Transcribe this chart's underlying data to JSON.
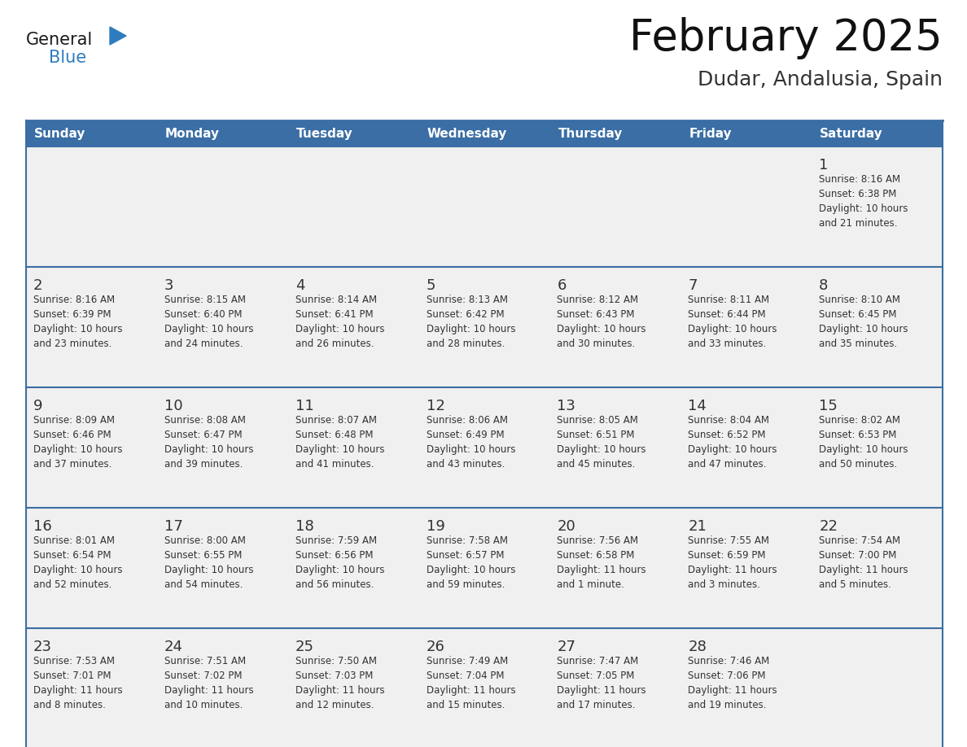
{
  "title": "February 2025",
  "subtitle": "Dudar, Andalusia, Spain",
  "days_of_week": [
    "Sunday",
    "Monday",
    "Tuesday",
    "Wednesday",
    "Thursday",
    "Friday",
    "Saturday"
  ],
  "header_bg": "#3a6ea5",
  "header_text": "#ffffff",
  "row_bg": "#f0f0f0",
  "cell_border_color": "#3a6ea5",
  "day_number_color": "#333333",
  "text_color": "#333333",
  "logo_general_color": "#1a1a1a",
  "logo_blue_color": "#2e7cbf",
  "logo_triangle_color": "#2e7cbf",
  "calendar_data": [
    [
      null,
      null,
      null,
      null,
      null,
      null,
      {
        "day": "1",
        "sunrise": "8:16 AM",
        "sunset": "6:38 PM",
        "daylight": "10 hours and 21 minutes."
      }
    ],
    [
      {
        "day": "2",
        "sunrise": "8:16 AM",
        "sunset": "6:39 PM",
        "daylight": "10 hours and 23 minutes."
      },
      {
        "day": "3",
        "sunrise": "8:15 AM",
        "sunset": "6:40 PM",
        "daylight": "10 hours and 24 minutes."
      },
      {
        "day": "4",
        "sunrise": "8:14 AM",
        "sunset": "6:41 PM",
        "daylight": "10 hours and 26 minutes."
      },
      {
        "day": "5",
        "sunrise": "8:13 AM",
        "sunset": "6:42 PM",
        "daylight": "10 hours and 28 minutes."
      },
      {
        "day": "6",
        "sunrise": "8:12 AM",
        "sunset": "6:43 PM",
        "daylight": "10 hours and 30 minutes."
      },
      {
        "day": "7",
        "sunrise": "8:11 AM",
        "sunset": "6:44 PM",
        "daylight": "10 hours and 33 minutes."
      },
      {
        "day": "8",
        "sunrise": "8:10 AM",
        "sunset": "6:45 PM",
        "daylight": "10 hours and 35 minutes."
      }
    ],
    [
      {
        "day": "9",
        "sunrise": "8:09 AM",
        "sunset": "6:46 PM",
        "daylight": "10 hours and 37 minutes."
      },
      {
        "day": "10",
        "sunrise": "8:08 AM",
        "sunset": "6:47 PM",
        "daylight": "10 hours and 39 minutes."
      },
      {
        "day": "11",
        "sunrise": "8:07 AM",
        "sunset": "6:48 PM",
        "daylight": "10 hours and 41 minutes."
      },
      {
        "day": "12",
        "sunrise": "8:06 AM",
        "sunset": "6:49 PM",
        "daylight": "10 hours and 43 minutes."
      },
      {
        "day": "13",
        "sunrise": "8:05 AM",
        "sunset": "6:51 PM",
        "daylight": "10 hours and 45 minutes."
      },
      {
        "day": "14",
        "sunrise": "8:04 AM",
        "sunset": "6:52 PM",
        "daylight": "10 hours and 47 minutes."
      },
      {
        "day": "15",
        "sunrise": "8:02 AM",
        "sunset": "6:53 PM",
        "daylight": "10 hours and 50 minutes."
      }
    ],
    [
      {
        "day": "16",
        "sunrise": "8:01 AM",
        "sunset": "6:54 PM",
        "daylight": "10 hours and 52 minutes."
      },
      {
        "day": "17",
        "sunrise": "8:00 AM",
        "sunset": "6:55 PM",
        "daylight": "10 hours and 54 minutes."
      },
      {
        "day": "18",
        "sunrise": "7:59 AM",
        "sunset": "6:56 PM",
        "daylight": "10 hours and 56 minutes."
      },
      {
        "day": "19",
        "sunrise": "7:58 AM",
        "sunset": "6:57 PM",
        "daylight": "10 hours and 59 minutes."
      },
      {
        "day": "20",
        "sunrise": "7:56 AM",
        "sunset": "6:58 PM",
        "daylight": "11 hours and 1 minute."
      },
      {
        "day": "21",
        "sunrise": "7:55 AM",
        "sunset": "6:59 PM",
        "daylight": "11 hours and 3 minutes."
      },
      {
        "day": "22",
        "sunrise": "7:54 AM",
        "sunset": "7:00 PM",
        "daylight": "11 hours and 5 minutes."
      }
    ],
    [
      {
        "day": "23",
        "sunrise": "7:53 AM",
        "sunset": "7:01 PM",
        "daylight": "11 hours and 8 minutes."
      },
      {
        "day": "24",
        "sunrise": "7:51 AM",
        "sunset": "7:02 PM",
        "daylight": "11 hours and 10 minutes."
      },
      {
        "day": "25",
        "sunrise": "7:50 AM",
        "sunset": "7:03 PM",
        "daylight": "11 hours and 12 minutes."
      },
      {
        "day": "26",
        "sunrise": "7:49 AM",
        "sunset": "7:04 PM",
        "daylight": "11 hours and 15 minutes."
      },
      {
        "day": "27",
        "sunrise": "7:47 AM",
        "sunset": "7:05 PM",
        "daylight": "11 hours and 17 minutes."
      },
      {
        "day": "28",
        "sunrise": "7:46 AM",
        "sunset": "7:06 PM",
        "daylight": "11 hours and 19 minutes."
      },
      null
    ]
  ]
}
